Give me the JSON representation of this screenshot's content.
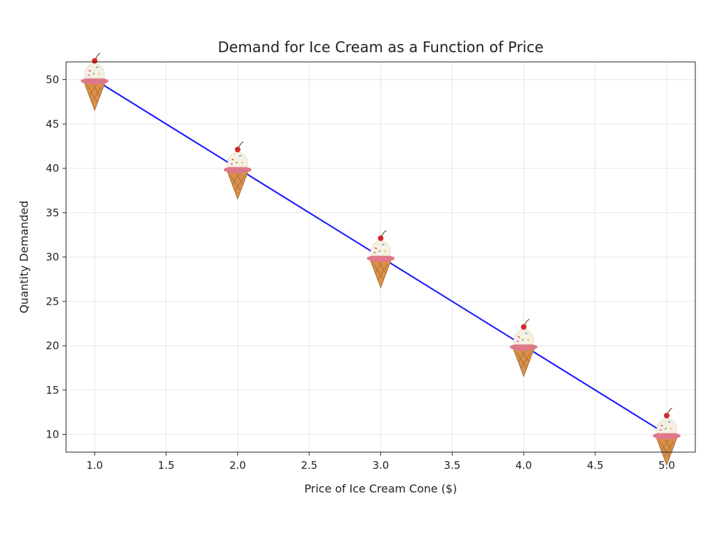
{
  "chart_data": {
    "type": "line",
    "title": "Demand for Ice Cream as a Function of Price",
    "xlabel": "Price of Ice Cream Cone ($)",
    "ylabel": "Quantity Demanded",
    "xlim": [
      0.8,
      5.2
    ],
    "ylim": [
      8,
      52
    ],
    "xticks": [
      "1.0",
      "1.5",
      "2.0",
      "2.5",
      "3.0",
      "3.5",
      "4.0",
      "4.5",
      "5.0"
    ],
    "yticks": [
      "10",
      "15",
      "20",
      "25",
      "30",
      "35",
      "40",
      "45",
      "50"
    ],
    "grid": true,
    "line_color": "#1f1fff",
    "marker_icon": "ice-cream-cone-icon",
    "x": [
      1,
      2,
      3,
      4,
      5
    ],
    "y": [
      50,
      40,
      30,
      20,
      10
    ]
  }
}
